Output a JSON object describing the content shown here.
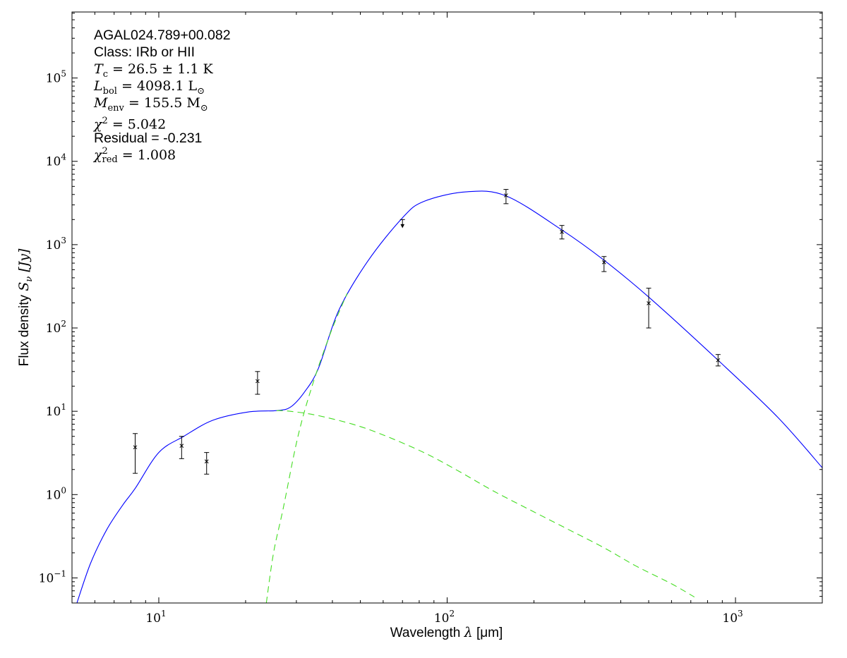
{
  "chart_data": {
    "type": "scatter",
    "title": "",
    "xlabel": "Wavelength λ [μm]",
    "xlabel_parts": {
      "pre": "Wavelength ",
      "sym": "λ",
      "unit": " [μm]"
    },
    "ylabel": "Flux density S_ν [Jy]",
    "ylabel_parts": {
      "pre": "Flux density ",
      "sym": "S",
      "sub": "ν",
      "unit": " [Jy]"
    },
    "xscale": "log",
    "yscale": "log",
    "xlim": [
      5,
      2000
    ],
    "ylim": [
      0.05,
      620000
    ],
    "xticks": [
      {
        "base": "10",
        "exp": "1",
        "value": 10
      },
      {
        "base": "10",
        "exp": "2",
        "value": 100
      },
      {
        "base": "10",
        "exp": "3",
        "value": 1000
      }
    ],
    "yticks": [
      {
        "base": "10",
        "exp": "−1",
        "value": 0.1
      },
      {
        "base": "10",
        "exp": "0",
        "value": 1
      },
      {
        "base": "10",
        "exp": "1",
        "value": 10
      },
      {
        "base": "10",
        "exp": "2",
        "value": 100
      },
      {
        "base": "10",
        "exp": "3",
        "value": 1000
      },
      {
        "base": "10",
        "exp": "4",
        "value": 10000
      },
      {
        "base": "10",
        "exp": "5",
        "value": 100000
      }
    ],
    "points": [
      {
        "x": 8.28,
        "y": 3.7,
        "ylo": 1.8,
        "yhi": 5.4
      },
      {
        "x": 12,
        "y": 3.85,
        "ylo": 2.7,
        "yhi": 5.0
      },
      {
        "x": 14.65,
        "y": 2.5,
        "ylo": 1.76,
        "yhi": 3.2
      },
      {
        "x": 22,
        "y": 23,
        "ylo": 16,
        "yhi": 30
      },
      {
        "x": 160,
        "y": 3900,
        "ylo": 3100,
        "yhi": 4600
      },
      {
        "x": 250,
        "y": 1420,
        "ylo": 1170,
        "yhi": 1700
      },
      {
        "x": 350,
        "y": 614,
        "ylo": 475,
        "yhi": 720
      },
      {
        "x": 500,
        "y": 198,
        "ylo": 100,
        "yhi": 300
      },
      {
        "x": 870,
        "y": 41,
        "ylo": 35,
        "yhi": 48
      }
    ],
    "upper_limits": [
      {
        "x": 70,
        "y": 2000
      }
    ],
    "series": [
      {
        "name": "total model",
        "color": "#0000ff",
        "style": "solid",
        "x": [
          5.2,
          5.8,
          6.6,
          7.5,
          8.3,
          10,
          12.2,
          15.4,
          20.4,
          25.6,
          28.6,
          32,
          35.8,
          42,
          53,
          70,
          83,
          116,
          160,
          250,
          350,
          500,
          870,
          1400,
          2000
        ],
        "y": [
          0.05,
          0.15,
          0.38,
          0.75,
          1.2,
          3.2,
          5.0,
          7.8,
          9.8,
          10.2,
          11.2,
          17,
          33,
          160,
          630,
          2100,
          3300,
          4300,
          3850,
          1500,
          650,
          235,
          41,
          8.5,
          2.1
        ]
      },
      {
        "name": "warm component",
        "color": "#44dd22",
        "style": "dashed",
        "x": [
          25.6,
          28.6,
          35,
          47,
          60,
          83,
          110,
          145,
          200,
          260,
          350,
          450,
          600,
          720
        ],
        "y": [
          10.2,
          10.0,
          9.0,
          7.0,
          5.2,
          3.2,
          1.9,
          1.1,
          0.62,
          0.39,
          0.23,
          0.14,
          0.085,
          0.059
        ]
      },
      {
        "name": "cold component",
        "color": "#44dd22",
        "style": "dashed",
        "x": [
          23.6,
          25,
          27,
          30.3,
          34,
          39.5,
          45
        ],
        "y": [
          0.05,
          0.2,
          0.68,
          4.8,
          20,
          89,
          260
        ]
      }
    ]
  },
  "annotations": {
    "source": "AGAL024.789+00.082",
    "class": "Class: IRb or HII",
    "tc": {
      "sym": "T",
      "sub": "c",
      "rest": " = 26.5 ± 1.1 K"
    },
    "lbol": {
      "sym": "L",
      "sub": "bol",
      "rest": " = 4098.1 L",
      "unit_sub": "⊙"
    },
    "menv": {
      "sym": "M",
      "sub": "env",
      "rest": " = 155.5 M",
      "unit_sub": "⊙"
    },
    "chi2": {
      "sym": "χ",
      "sup": "2",
      "rest": " = 5.042"
    },
    "residual": "Residual = -0.231",
    "chi2red": {
      "sym": "χ",
      "sup": "2",
      "sub": "red",
      "rest": " = 1.008"
    }
  }
}
